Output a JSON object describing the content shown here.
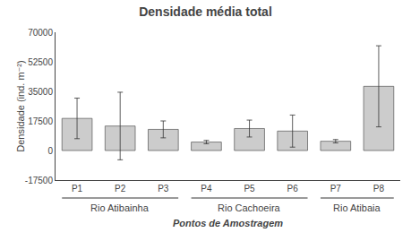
{
  "chart_data": {
    "type": "bar",
    "title": "Densidade média total",
    "xlabel": "Pontos de Amostragem",
    "ylabel": "Densidade (ind. m⁻²)",
    "categories": [
      "P1",
      "P2",
      "P3",
      "P4",
      "P5",
      "P6",
      "P7",
      "P8"
    ],
    "values": [
      19000,
      14500,
      12500,
      5000,
      13000,
      11500,
      5500,
      38000
    ],
    "errors": [
      12000,
      20000,
      5000,
      1000,
      5000,
      9500,
      1000,
      24000
    ],
    "color": "#cccccc",
    "groups": [
      {
        "label": "Rio Atibainha",
        "categories": [
          "P1",
          "P2",
          "P3"
        ]
      },
      {
        "label": "Rio Cachoeira",
        "categories": [
          "P4",
          "P5",
          "P6"
        ]
      },
      {
        "label": "Rio Atibaia",
        "categories": [
          "P7",
          "P8"
        ]
      }
    ],
    "ylim": [
      -17500,
      70000
    ],
    "yticks": [
      -17500,
      0,
      17500,
      35000,
      52500,
      70000
    ],
    "grid": false
  }
}
